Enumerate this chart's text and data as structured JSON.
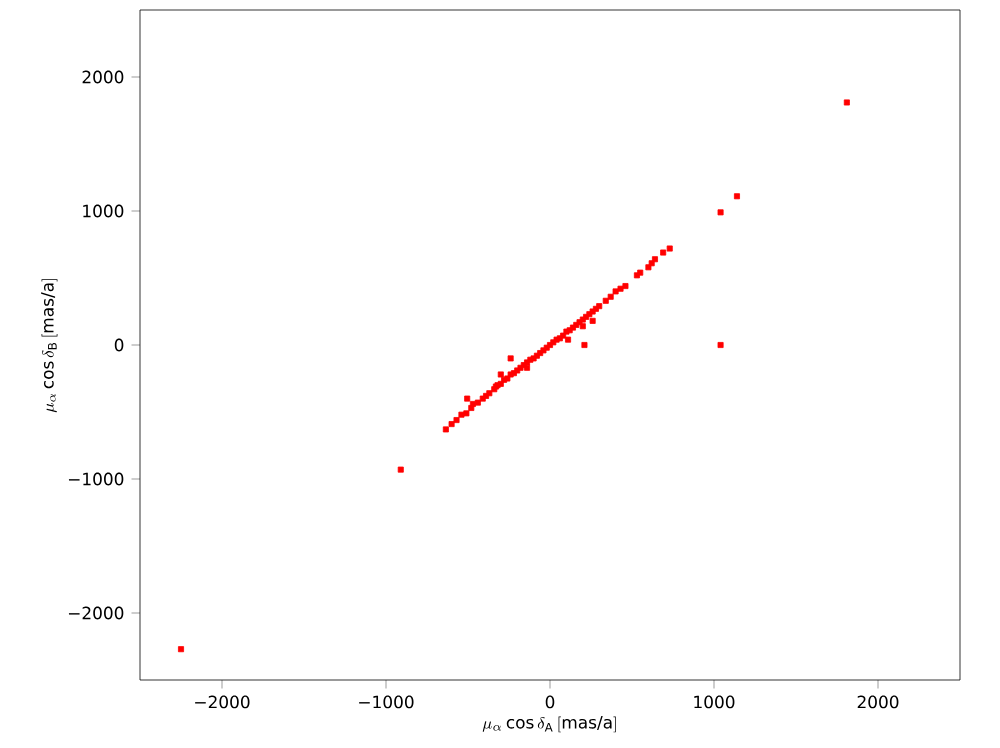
{
  "chart_data": {
    "type": "scatter",
    "xlabel": "\\mu_\\alpha\\cos\\delta_\\mathrm{A}\\,[\\mbox{mas/a}]",
    "ylabel": "\\mu_\\alpha\\cos\\delta_\\mathrm{B}\\,[\\mbox{mas/a}]",
    "xlim": [
      -2500,
      2500
    ],
    "ylim": [
      -2500,
      2500
    ],
    "xticks": [
      {
        "value": -2000,
        "label": "−2000"
      },
      {
        "value": -1000,
        "label": "−1000"
      },
      0,
      1000,
      2000
    ],
    "yticks": [
      {
        "value": -2000,
        "label": "−2000"
      },
      {
        "value": -1000,
        "label": "−1000"
      },
      0,
      1000,
      2000
    ],
    "grid": false,
    "marker": "square",
    "series": [
      {
        "color": "#ff0000",
        "x": [
          -2250,
          -910,
          1040,
          1140,
          1810,
          1040,
          210,
          -240,
          -505,
          -635,
          -600,
          -570,
          -540,
          -510,
          -480,
          -470,
          -440,
          -410,
          -390,
          -370,
          -340,
          -320,
          -300,
          -280,
          -260,
          -240,
          -220,
          -200,
          -180,
          -160,
          -140,
          -120,
          -100,
          -80,
          -60,
          -40,
          -20,
          0,
          20,
          40,
          60,
          80,
          100,
          120,
          140,
          160,
          180,
          200,
          220,
          240,
          260,
          280,
          300,
          340,
          370,
          400,
          430,
          460,
          530,
          550,
          600,
          620,
          640,
          690,
          730,
          -300,
          -330,
          110,
          200,
          260,
          -140
        ],
        "values": [
          -2270,
          -930,
          990,
          1110,
          1810,
          0,
          0,
          -100,
          -400,
          -630,
          -590,
          -560,
          -520,
          -510,
          -470,
          -440,
          -430,
          -400,
          -380,
          -360,
          -330,
          -300,
          -290,
          -260,
          -250,
          -220,
          -210,
          -190,
          -170,
          -150,
          -130,
          -110,
          -100,
          -80,
          -60,
          -40,
          -20,
          0,
          20,
          40,
          50,
          70,
          100,
          110,
          130,
          150,
          170,
          190,
          210,
          230,
          250,
          270,
          290,
          330,
          360,
          400,
          420,
          440,
          520,
          540,
          580,
          610,
          640,
          690,
          720,
          -220,
          -310,
          40,
          140,
          180,
          -170
        ]
      }
    ]
  }
}
